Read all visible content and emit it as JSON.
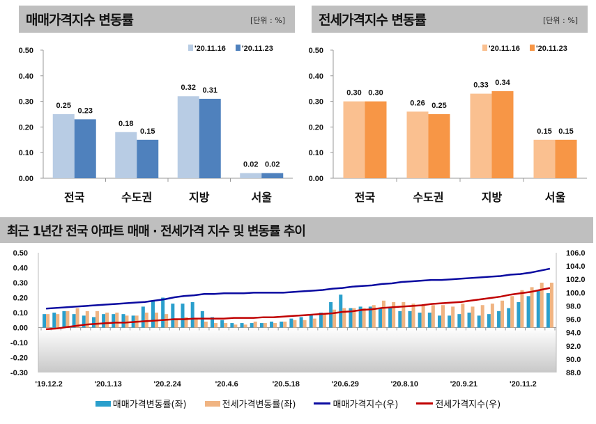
{
  "colors": {
    "sale_prev": "#b8cce4",
    "sale_curr": "#4f81bd",
    "jeonse_prev": "#fac090",
    "jeonse_curr": "#f79646",
    "sale_rate": "#2a9fcc",
    "jeonse_rate": "#f0b482",
    "sale_index": "#0a0aa0",
    "jeonse_index": "#c00000"
  },
  "chart_data": [
    {
      "type": "bar",
      "title": "매매가격지수 변동률",
      "unit": "[단위 : %]",
      "categories": [
        "전국",
        "수도권",
        "지방",
        "서울"
      ],
      "series": [
        {
          "name": "'20.11.16",
          "values": [
            0.25,
            0.18,
            0.32,
            0.02
          ]
        },
        {
          "name": "'20.11.23",
          "values": [
            0.23,
            0.15,
            0.31,
            0.02
          ]
        }
      ],
      "ylim": [
        0,
        0.5
      ],
      "yticks": [
        "0.00",
        "0.10",
        "0.20",
        "0.30",
        "0.40",
        "0.50"
      ],
      "legend": "top-right"
    },
    {
      "type": "bar",
      "title": "전세가격지수 변동률",
      "unit": "[단위 : %]",
      "categories": [
        "전국",
        "수도권",
        "지방",
        "서울"
      ],
      "series": [
        {
          "name": "'20.11.16",
          "values": [
            0.3,
            0.26,
            0.33,
            0.15
          ]
        },
        {
          "name": "'20.11.23",
          "values": [
            0.3,
            0.25,
            0.34,
            0.15
          ]
        }
      ],
      "ylim": [
        0,
        0.5
      ],
      "yticks": [
        "0.00",
        "0.10",
        "0.20",
        "0.30",
        "0.40",
        "0.50"
      ],
      "legend": "top-right"
    },
    {
      "type": "bar+line",
      "title": "최근 1년간 전국 아파트 매매 · 전세가격 지수 및 변동률 추이",
      "xticks": [
        "'19.12.2",
        "'20.1.13",
        "'20.2.24",
        "'20.4.6",
        "'20.5.18",
        "'20.6.29",
        "'20.8.10",
        "'20.9.21",
        "'20.11.2"
      ],
      "ylim_left": [
        -0.3,
        0.5
      ],
      "yticks_left": [
        "0.50",
        "0.40",
        "0.30",
        "0.20",
        "0.10",
        "0.00",
        "-0.10",
        "-0.20",
        "-0.30"
      ],
      "ylim_right": [
        88,
        106
      ],
      "yticks_right": [
        "106.0",
        "104.0",
        "102.0",
        "100.0",
        "98.0",
        "96.0",
        "94.0",
        "92.0",
        "90.0",
        "88.0"
      ],
      "legend": "bottom",
      "series": [
        {
          "name": "매매가격변동률(좌)",
          "axis": "left",
          "kind": "bar",
          "values": [
            0.09,
            0.1,
            0.11,
            0.09,
            0.08,
            0.07,
            0.09,
            0.09,
            0.09,
            0.08,
            0.14,
            0.18,
            0.2,
            0.16,
            0.16,
            0.17,
            0.11,
            0.07,
            0.05,
            0.03,
            0.03,
            0.03,
            0.03,
            0.04,
            0.04,
            0.06,
            0.07,
            0.09,
            0.1,
            0.17,
            0.22,
            0.13,
            0.14,
            0.14,
            0.13,
            0.13,
            0.11,
            0.11,
            0.1,
            0.1,
            0.08,
            0.08,
            0.09,
            0.1,
            0.08,
            0.09,
            0.11,
            0.13,
            0.17,
            0.21,
            0.25,
            0.23
          ]
        },
        {
          "name": "전세가격변동률(좌)",
          "axis": "left",
          "kind": "bar",
          "values": [
            0.09,
            0.09,
            0.11,
            0.13,
            0.11,
            0.11,
            0.1,
            0.1,
            0.08,
            0.08,
            0.1,
            0.1,
            0.09,
            0.06,
            0.07,
            0.06,
            0.04,
            0.03,
            0.03,
            0.02,
            0.02,
            0.04,
            0.03,
            0.03,
            0.04,
            0.05,
            0.05,
            0.06,
            0.09,
            0.12,
            0.13,
            0.13,
            0.13,
            0.15,
            0.18,
            0.17,
            0.17,
            0.16,
            0.15,
            0.15,
            0.15,
            0.14,
            0.16,
            0.14,
            0.15,
            0.16,
            0.18,
            0.21,
            0.25,
            0.27,
            0.3,
            0.3
          ]
        },
        {
          "name": "매매가격지수(우)",
          "axis": "right",
          "kind": "line",
          "values": [
            97.6,
            97.7,
            97.8,
            97.9,
            98.0,
            98.1,
            98.2,
            98.3,
            98.4,
            98.5,
            98.6,
            98.8,
            99.0,
            99.3,
            99.5,
            99.6,
            99.8,
            99.8,
            99.9,
            99.9,
            99.9,
            100.0,
            100.0,
            100.0,
            100.0,
            100.1,
            100.2,
            100.3,
            100.4,
            100.6,
            100.7,
            100.9,
            101.0,
            101.1,
            101.3,
            101.4,
            101.6,
            101.7,
            101.8,
            101.9,
            101.9,
            102.0,
            102.1,
            102.2,
            102.3,
            102.4,
            102.5,
            102.7,
            102.8,
            103.0,
            103.3,
            103.6
          ]
        },
        {
          "name": "전세가격지수(우)",
          "axis": "right",
          "kind": "line",
          "values": [
            94.5,
            94.6,
            94.8,
            95.0,
            95.2,
            95.3,
            95.4,
            95.5,
            95.5,
            95.6,
            95.7,
            95.8,
            95.9,
            96.0,
            96.0,
            96.1,
            96.1,
            96.1,
            96.1,
            96.2,
            96.2,
            96.2,
            96.3,
            96.3,
            96.4,
            96.5,
            96.6,
            96.7,
            96.8,
            96.9,
            97.1,
            97.2,
            97.4,
            97.5,
            97.7,
            97.8,
            97.9,
            98.0,
            98.1,
            98.3,
            98.4,
            98.5,
            98.6,
            98.8,
            99.0,
            99.2,
            99.4,
            99.7,
            99.9,
            100.1,
            100.4,
            100.7
          ]
        }
      ]
    }
  ]
}
